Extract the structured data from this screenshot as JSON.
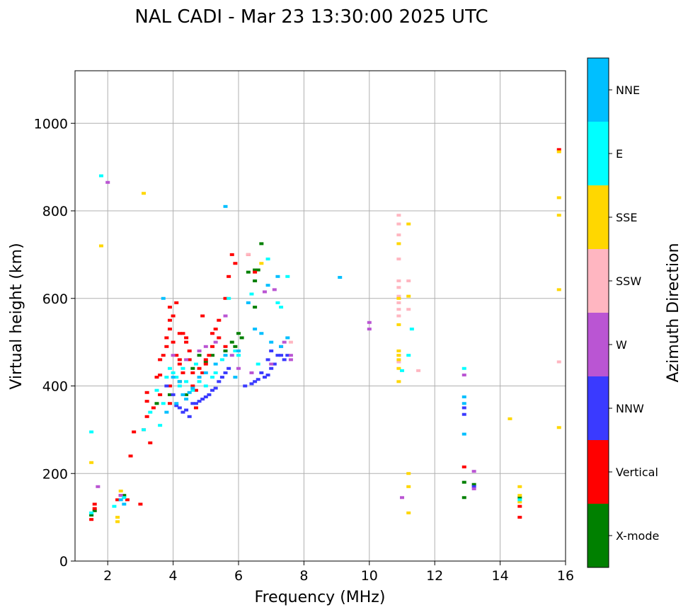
{
  "chart_data": {
    "type": "scatter",
    "title": "NAL CADI - Mar 23 13:30:00 2025 UTC",
    "xlabel": "Frequency (MHz)",
    "ylabel": "Virtual height (km)",
    "xlim": [
      1,
      16
    ],
    "ylim": [
      0,
      1120
    ],
    "xticks": [
      2,
      4,
      6,
      8,
      10,
      12,
      14,
      16
    ],
    "yticks": [
      0,
      200,
      400,
      600,
      800,
      1000
    ],
    "grid": true,
    "colorbar": {
      "label": "Azimuth Direction",
      "categories": [
        {
          "name": "X-mode",
          "color": "#008000"
        },
        {
          "name": "Vertical",
          "color": "#ff0000"
        },
        {
          "name": "NNW",
          "color": "#3a3aff"
        },
        {
          "name": "W",
          "color": "#ba55d3"
        },
        {
          "name": "SSW",
          "color": "#ffb6c1"
        },
        {
          "name": "SSE",
          "color": "#ffd700"
        },
        {
          "name": "E",
          "color": "#00ffff"
        },
        {
          "name": "NNE",
          "color": "#00bfff"
        }
      ]
    },
    "series": [
      {
        "name": "X-mode",
        "points": [
          [
            1.5,
            105
          ],
          [
            1.6,
            115
          ],
          [
            2.5,
            150
          ],
          [
            5.6,
            480
          ],
          [
            5.8,
            500
          ],
          [
            6.0,
            520
          ],
          [
            6.3,
            660
          ],
          [
            6.5,
            640
          ],
          [
            6.5,
            580
          ],
          [
            6.6,
            665
          ],
          [
            6.7,
            725
          ],
          [
            6.5,
            665
          ],
          [
            5.2,
            470
          ],
          [
            5.0,
            455
          ],
          [
            4.6,
            440
          ],
          [
            4.2,
            410
          ],
          [
            3.9,
            380
          ],
          [
            6.1,
            510
          ],
          [
            5.9,
            490
          ],
          [
            12.9,
            145
          ],
          [
            12.9,
            180
          ],
          [
            13.2,
            175
          ],
          [
            14.6,
            145
          ],
          [
            4.8,
            470
          ],
          [
            4.4,
            380
          ],
          [
            3.5,
            360
          ]
        ]
      },
      {
        "name": "Vertical",
        "points": [
          [
            1.5,
            95
          ],
          [
            1.6,
            120
          ],
          [
            1.6,
            130
          ],
          [
            2.3,
            140
          ],
          [
            2.4,
            150
          ],
          [
            2.6,
            140
          ],
          [
            3.0,
            130
          ],
          [
            2.8,
            295
          ],
          [
            3.1,
            300
          ],
          [
            3.2,
            330
          ],
          [
            3.2,
            365
          ],
          [
            3.2,
            385
          ],
          [
            3.5,
            420
          ],
          [
            3.6,
            425
          ],
          [
            3.7,
            470
          ],
          [
            3.8,
            490
          ],
          [
            3.8,
            510
          ],
          [
            3.9,
            530
          ],
          [
            3.9,
            550
          ],
          [
            3.9,
            580
          ],
          [
            4.0,
            560
          ],
          [
            4.0,
            500
          ],
          [
            4.1,
            470
          ],
          [
            4.2,
            460
          ],
          [
            4.2,
            450
          ],
          [
            4.3,
            520
          ],
          [
            4.4,
            510
          ],
          [
            4.4,
            500
          ],
          [
            4.5,
            480
          ],
          [
            4.5,
            460
          ],
          [
            4.6,
            430
          ],
          [
            4.6,
            400
          ],
          [
            4.7,
            350
          ],
          [
            4.7,
            390
          ],
          [
            4.8,
            440
          ],
          [
            4.9,
            430
          ],
          [
            5.0,
            460
          ],
          [
            5.0,
            450
          ],
          [
            5.1,
            470
          ],
          [
            5.2,
            490
          ],
          [
            5.4,
            510
          ],
          [
            5.4,
            550
          ],
          [
            5.6,
            600
          ],
          [
            5.7,
            650
          ],
          [
            5.8,
            700
          ],
          [
            5.9,
            680
          ],
          [
            5.3,
            530
          ],
          [
            5.6,
            490
          ],
          [
            3.9,
            400
          ],
          [
            3.9,
            360
          ],
          [
            3.6,
            380
          ],
          [
            3.4,
            350
          ],
          [
            4.3,
            430
          ],
          [
            4.1,
            590
          ],
          [
            4.2,
            520
          ],
          [
            3.6,
            460
          ],
          [
            4.9,
            560
          ],
          [
            5.2,
            520
          ],
          [
            6.3,
            700
          ],
          [
            6.5,
            660
          ],
          [
            12.9,
            215
          ],
          [
            14.6,
            125
          ],
          [
            14.6,
            100
          ],
          [
            15.8,
            940
          ],
          [
            3.3,
            270
          ],
          [
            2.7,
            240
          ]
        ]
      },
      {
        "name": "NNW",
        "points": [
          [
            4.2,
            350
          ],
          [
            4.3,
            340
          ],
          [
            4.4,
            345
          ],
          [
            4.5,
            330
          ],
          [
            4.6,
            360
          ],
          [
            4.7,
            360
          ],
          [
            4.8,
            365
          ],
          [
            4.9,
            370
          ],
          [
            5.0,
            375
          ],
          [
            5.1,
            380
          ],
          [
            5.2,
            390
          ],
          [
            5.3,
            395
          ],
          [
            5.4,
            410
          ],
          [
            5.5,
            420
          ],
          [
            5.6,
            430
          ],
          [
            5.7,
            440
          ],
          [
            6.2,
            400
          ],
          [
            6.4,
            405
          ],
          [
            6.5,
            410
          ],
          [
            6.6,
            415
          ],
          [
            6.7,
            430
          ],
          [
            6.8,
            420
          ],
          [
            6.9,
            425
          ],
          [
            7.0,
            440
          ],
          [
            7.1,
            450
          ],
          [
            7.2,
            470
          ],
          [
            7.3,
            470
          ],
          [
            7.4,
            460
          ],
          [
            7.5,
            470
          ],
          [
            3.8,
            400
          ],
          [
            4.0,
            380
          ],
          [
            4.1,
            355
          ],
          [
            6.9,
            460
          ],
          [
            7.0,
            480
          ],
          [
            12.9,
            335
          ],
          [
            12.9,
            350
          ],
          [
            13.2,
            170
          ]
        ]
      },
      {
        "name": "W",
        "points": [
          [
            1.7,
            170
          ],
          [
            2.0,
            865
          ],
          [
            2.4,
            150
          ],
          [
            4.0,
            470
          ],
          [
            4.4,
            460
          ],
          [
            4.8,
            480
          ],
          [
            5.0,
            490
          ],
          [
            5.3,
            500
          ],
          [
            5.6,
            560
          ],
          [
            6.0,
            440
          ],
          [
            6.4,
            430
          ],
          [
            7.0,
            450
          ],
          [
            7.3,
            490
          ],
          [
            7.4,
            500
          ],
          [
            7.6,
            460
          ],
          [
            7.6,
            470
          ],
          [
            10.0,
            545
          ],
          [
            10.0,
            530
          ],
          [
            11.0,
            145
          ],
          [
            12.9,
            425
          ],
          [
            13.2,
            205
          ],
          [
            13.2,
            165
          ],
          [
            6.8,
            615
          ],
          [
            7.1,
            620
          ],
          [
            5.8,
            470
          ]
        ]
      },
      {
        "name": "SSW",
        "points": [
          [
            10.9,
            790
          ],
          [
            10.9,
            770
          ],
          [
            10.9,
            745
          ],
          [
            10.9,
            690
          ],
          [
            10.9,
            640
          ],
          [
            10.9,
            625
          ],
          [
            10.9,
            605
          ],
          [
            10.9,
            590
          ],
          [
            10.9,
            575
          ],
          [
            10.9,
            560
          ],
          [
            10.9,
            470
          ],
          [
            10.9,
            455
          ],
          [
            11.2,
            575
          ],
          [
            11.2,
            640
          ],
          [
            11.5,
            435
          ],
          [
            15.8,
            455
          ],
          [
            7.6,
            500
          ],
          [
            6.3,
            700
          ]
        ]
      },
      {
        "name": "SSE",
        "points": [
          [
            1.5,
            225
          ],
          [
            1.8,
            720
          ],
          [
            2.4,
            160
          ],
          [
            2.3,
            100
          ],
          [
            2.3,
            90
          ],
          [
            3.1,
            840
          ],
          [
            6.7,
            680
          ],
          [
            10.9,
            725
          ],
          [
            10.9,
            600
          ],
          [
            10.9,
            540
          ],
          [
            10.9,
            480
          ],
          [
            10.9,
            470
          ],
          [
            10.9,
            460
          ],
          [
            10.9,
            440
          ],
          [
            10.9,
            410
          ],
          [
            11.2,
            770
          ],
          [
            11.2,
            605
          ],
          [
            11.2,
            200
          ],
          [
            11.2,
            170
          ],
          [
            11.2,
            110
          ],
          [
            14.3,
            325
          ],
          [
            14.6,
            170
          ],
          [
            14.6,
            150
          ],
          [
            14.6,
            135
          ],
          [
            15.8,
            935
          ],
          [
            15.8,
            830
          ],
          [
            15.8,
            790
          ],
          [
            15.8,
            620
          ],
          [
            15.8,
            305
          ]
        ]
      },
      {
        "name": "E",
        "points": [
          [
            1.5,
            295
          ],
          [
            1.5,
            110
          ],
          [
            1.8,
            880
          ],
          [
            2.2,
            125
          ],
          [
            2.5,
            145
          ],
          [
            3.1,
            300
          ],
          [
            3.3,
            340
          ],
          [
            3.6,
            310
          ],
          [
            3.7,
            360
          ],
          [
            3.8,
            420
          ],
          [
            3.9,
            440
          ],
          [
            4.0,
            430
          ],
          [
            4.1,
            420
          ],
          [
            4.2,
            400
          ],
          [
            4.4,
            410
          ],
          [
            4.6,
            390
          ],
          [
            4.8,
            410
          ],
          [
            5.0,
            400
          ],
          [
            5.3,
            430
          ],
          [
            5.5,
            460
          ],
          [
            5.7,
            600
          ],
          [
            5.9,
            480
          ],
          [
            6.0,
            470
          ],
          [
            6.4,
            610
          ],
          [
            6.6,
            450
          ],
          [
            6.9,
            690
          ],
          [
            7.2,
            590
          ],
          [
            7.3,
            580
          ],
          [
            7.5,
            650
          ],
          [
            11.0,
            435
          ],
          [
            11.2,
            470
          ],
          [
            11.3,
            530
          ],
          [
            12.9,
            440
          ],
          [
            14.6,
            140
          ],
          [
            5.2,
            420
          ],
          [
            4.7,
            450
          ],
          [
            3.5,
            390
          ],
          [
            4.3,
            440
          ]
        ]
      },
      {
        "name": "NNE",
        "points": [
          [
            2.4,
            140
          ],
          [
            2.5,
            130
          ],
          [
            3.7,
            600
          ],
          [
            4.0,
            420
          ],
          [
            4.2,
            410
          ],
          [
            4.3,
            380
          ],
          [
            4.4,
            370
          ],
          [
            4.5,
            385
          ],
          [
            4.6,
            395
          ],
          [
            4.8,
            420
          ],
          [
            5.0,
            430
          ],
          [
            5.3,
            450
          ],
          [
            5.6,
            470
          ],
          [
            6.0,
            480
          ],
          [
            6.3,
            590
          ],
          [
            6.5,
            530
          ],
          [
            6.7,
            520
          ],
          [
            7.0,
            500
          ],
          [
            7.3,
            490
          ],
          [
            7.5,
            510
          ],
          [
            6.9,
            630
          ],
          [
            7.2,
            650
          ],
          [
            9.1,
            648
          ],
          [
            5.6,
            810
          ],
          [
            12.9,
            375
          ],
          [
            12.9,
            360
          ],
          [
            12.9,
            290
          ],
          [
            3.8,
            340
          ],
          [
            4.1,
            360
          ],
          [
            5.9,
            420
          ]
        ]
      }
    ]
  }
}
